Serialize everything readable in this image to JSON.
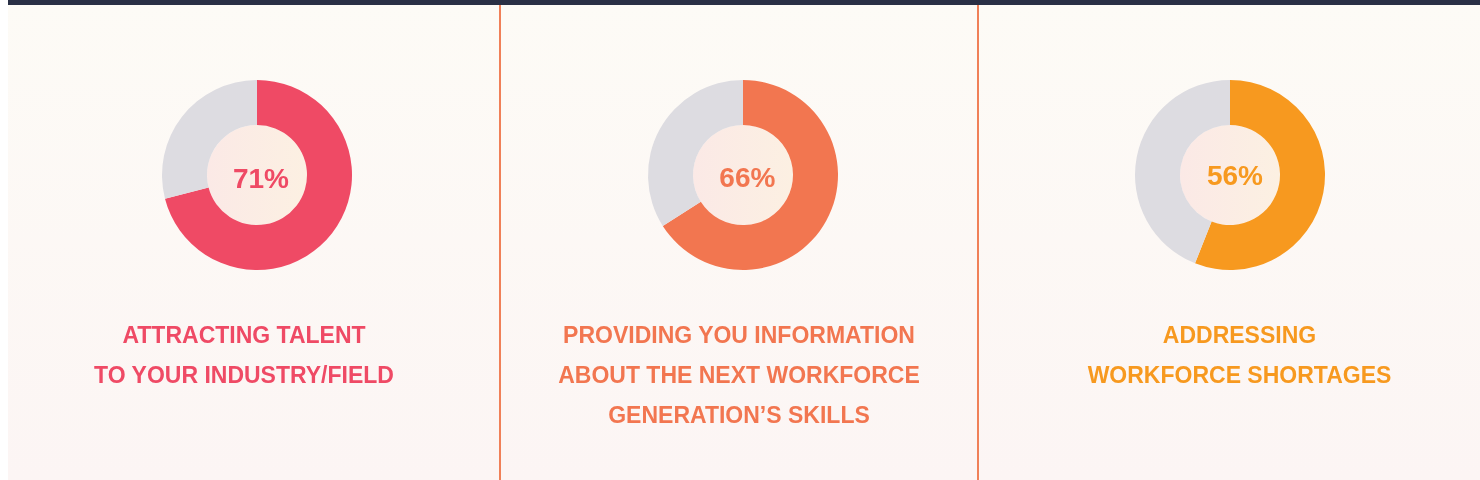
{
  "chart_data": [
    {
      "type": "donut",
      "title": "ATTRACTING TALENT\nTO YOUR INDUSTRY/FIELD",
      "categories": [
        null,
        null
      ],
      "values": [
        71,
        29
      ],
      "colors": [
        "#ef4a65",
        "#dddce1"
      ],
      "value_labels": [
        "71%",
        null
      ]
    },
    {
      "type": "donut",
      "title": "PROVIDING YOU INFORMATION\nABOUT THE NEXT WORKFORCE\nGENERATION’S SKILLS",
      "categories": [
        null,
        null
      ],
      "values": [
        66,
        34
      ],
      "colors": [
        "#f27650",
        "#dddce1"
      ],
      "value_labels": [
        "66%",
        null
      ]
    },
    {
      "type": "donut",
      "title": "ADDRESSING\nWORKFORCE SHORTAGES",
      "categories": [
        null,
        null
      ],
      "values": [
        56,
        44
      ],
      "colors": [
        "#f7991f",
        "#dddce1"
      ],
      "value_labels": [
        "56%",
        null
      ]
    }
  ]
}
